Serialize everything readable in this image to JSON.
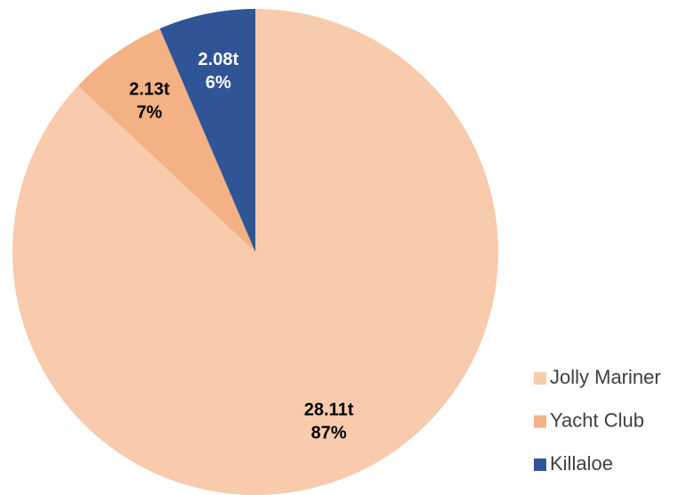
{
  "chart_data": {
    "type": "pie",
    "categories": [
      "Jolly Mariner",
      "Yacht Club",
      "Killaloe"
    ],
    "values": [
      28.11,
      2.13,
      2.08
    ],
    "value_labels": [
      "28.11t",
      "2.13t",
      "2.08t"
    ],
    "percentages": [
      87,
      7,
      6
    ],
    "percentage_labels": [
      "87%",
      "7%",
      "6%"
    ],
    "colors": [
      "#f8cbad",
      "#f4b183",
      "#2f5597"
    ],
    "label_colors": [
      "#000000",
      "#000000",
      "#ffffff"
    ],
    "legend": "right"
  }
}
